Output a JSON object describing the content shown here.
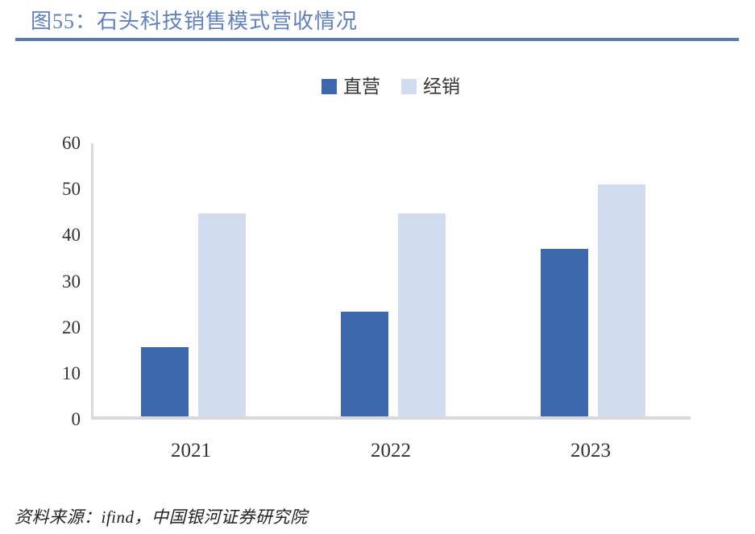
{
  "header": {
    "title": "图55：石头科技销售模式营收情况"
  },
  "chart_data": {
    "type": "bar",
    "title": "石头科技销售模式营收情况",
    "categories": [
      "2021",
      "2022",
      "2023"
    ],
    "series": [
      {
        "name": "直营",
        "color": "#3D68AE",
        "values": [
          15.0,
          22.8,
          36.4
        ]
      },
      {
        "name": "经销",
        "color": "#D1DDEE",
        "values": [
          44.0,
          44.0,
          50.4
        ]
      }
    ],
    "xlabel": "",
    "ylabel": "",
    "ylim": [
      0,
      60
    ],
    "yticks": [
      0,
      10,
      20,
      30,
      40,
      50,
      60
    ],
    "grid": false,
    "legend_position": "top"
  },
  "footer": {
    "source": "资料来源：ifind，中国银河证券研究院"
  },
  "colors": {
    "title": "#6181BD",
    "rule": "#5D7AAE",
    "axis": "#D9D9D9",
    "series_direct": "#3D68AE",
    "series_distribution": "#D1DDEE"
  }
}
